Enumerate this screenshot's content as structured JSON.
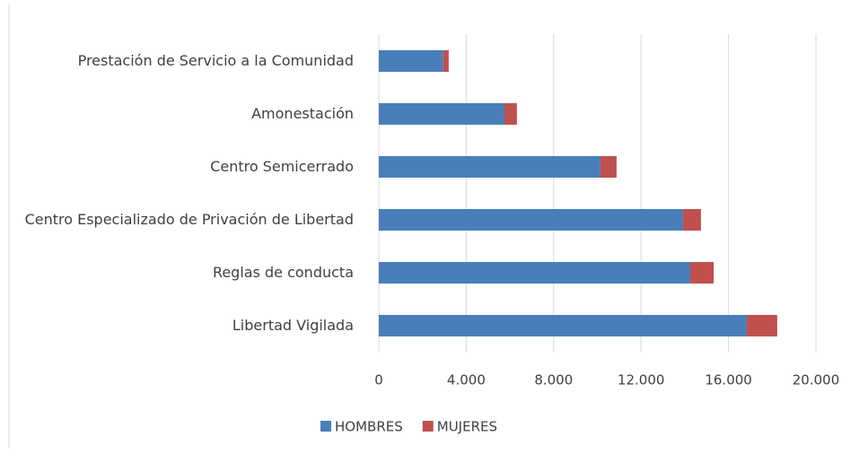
{
  "chart_data": {
    "type": "stacked_bar_horizontal",
    "categories": [
      "Prestación de Servicio a la Comunidad",
      "Amonestación",
      "Centro Semicerrado",
      "Centro Especializado de Privación de Libertad",
      "Reglas de conducta",
      "Libertad Vigilada"
    ],
    "series": [
      {
        "name": "HOMBRES",
        "color": "#4a7ebb",
        "values": [
          2950,
          5750,
          10140,
          13920,
          14250,
          16840
        ]
      },
      {
        "name": "MUJERES",
        "color": "#c0504d",
        "values": [
          250,
          570,
          740,
          820,
          1070,
          1390
        ]
      }
    ],
    "xlim": [
      0,
      20000
    ],
    "xticks": [
      0,
      {
        "value": 4000,
        "label": "4.000"
      },
      {
        "value": 8000,
        "label": "8.000"
      },
      {
        "value": 12000,
        "label": "12.000"
      },
      {
        "value": 16000,
        "label": "16.000"
      },
      {
        "value": 20000,
        "label": "20.000"
      }
    ],
    "grid": true,
    "legend": "bottom"
  }
}
